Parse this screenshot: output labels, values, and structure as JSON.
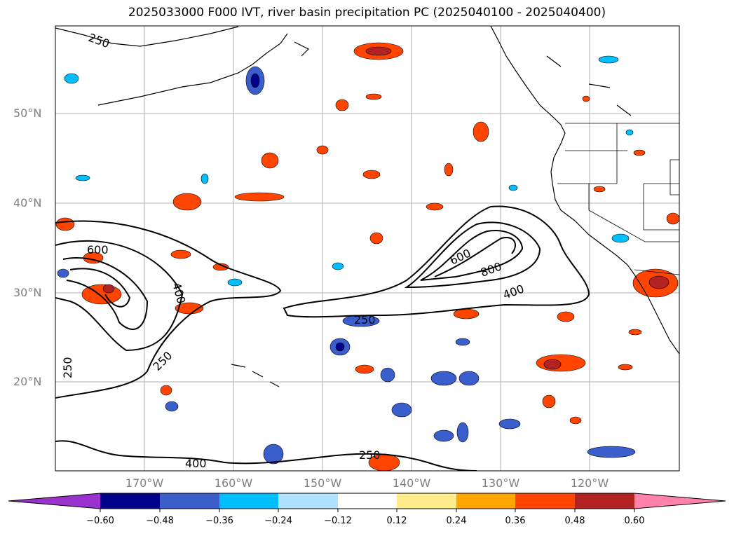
{
  "title": "2025033000 F000 IVT, river basin precipitation PC (2025040100 - 2025040400)",
  "lat_labels": [
    "50°N",
    "40°N",
    "30°N",
    "20°N"
  ],
  "lon_labels": [
    "170°W",
    "160°W",
    "150°W",
    "140°W",
    "130°W",
    "120°W"
  ],
  "colorbar": {
    "ticks": [
      "−0.60",
      "−0.48",
      "−0.36",
      "−0.24",
      "−0.12",
      "0.12",
      "0.24",
      "0.36",
      "0.48",
      "0.60"
    ],
    "colors": [
      "#9932cc",
      "#00008b",
      "#3a5fcd",
      "#00bfff",
      "#b0e2ff",
      "#ffffff",
      "#ffec8b",
      "#ffa500",
      "#ff4500",
      "#b22222",
      "#ff82ab"
    ]
  },
  "contour_labels": [
    "250",
    "600",
    "400",
    "250",
    "250",
    "600",
    "800",
    "400",
    "250",
    "250",
    "400"
  ]
}
